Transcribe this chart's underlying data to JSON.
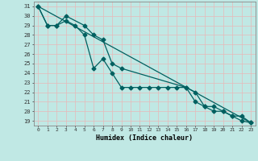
{
  "xlabel": "Humidex (Indice chaleur)",
  "bg_color": "#c0e8e4",
  "grid_color": "#e8b8b8",
  "line_color": "#006060",
  "xlim": [
    -0.5,
    23.5
  ],
  "ylim": [
    18.5,
    31.5
  ],
  "yticks": [
    19,
    20,
    21,
    22,
    23,
    24,
    25,
    26,
    27,
    28,
    29,
    30,
    31
  ],
  "xticks": [
    0,
    1,
    2,
    3,
    4,
    5,
    6,
    7,
    8,
    9,
    10,
    11,
    12,
    13,
    14,
    15,
    16,
    17,
    18,
    19,
    20,
    21,
    22,
    23
  ],
  "line1_x": [
    0,
    1,
    2,
    3,
    4,
    5,
    6,
    7,
    8,
    9,
    10,
    11,
    12,
    13,
    14,
    15,
    16,
    17,
    18,
    19,
    20,
    21,
    22,
    23
  ],
  "line1_y": [
    31,
    29,
    29,
    29.5,
    29,
    28,
    24.5,
    25.5,
    24,
    22.5,
    22.5,
    22.5,
    22.5,
    22.5,
    22.5,
    22.5,
    22.5,
    22,
    20.5,
    20.5,
    20,
    19.5,
    19.5,
    18.8
  ],
  "line2_x": [
    0,
    1,
    2,
    3,
    5,
    6,
    7,
    8,
    9,
    16,
    17,
    18,
    19,
    20,
    21,
    22,
    23
  ],
  "line2_y": [
    31,
    29,
    29,
    30,
    29,
    28,
    27.5,
    25,
    24.5,
    22.5,
    21,
    20.5,
    20,
    20,
    19.5,
    19,
    18.8
  ],
  "line3_x": [
    0,
    23
  ],
  "line3_y": [
    31,
    18.8
  ]
}
